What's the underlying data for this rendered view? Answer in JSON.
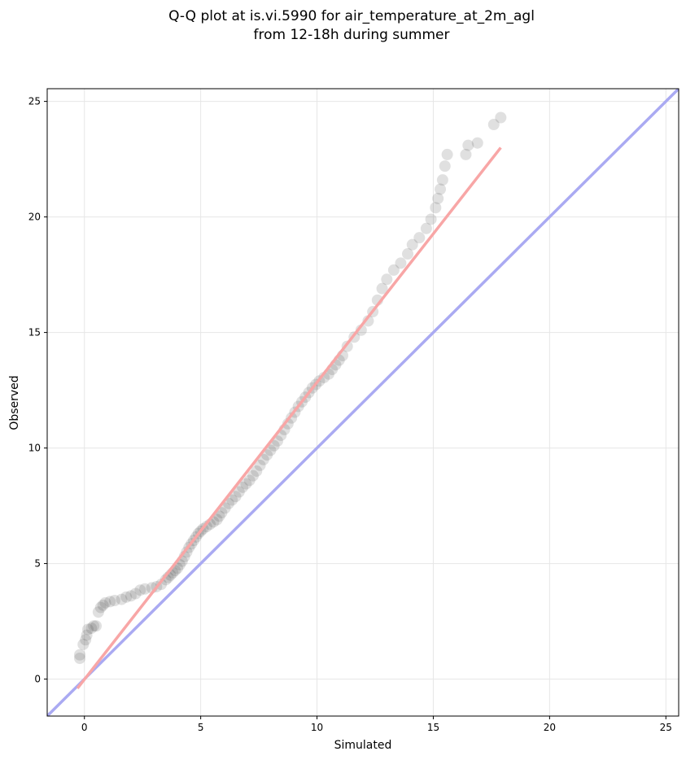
{
  "chart_data": {
    "type": "scatter",
    "title": [
      "Q-Q plot at is.vi.5990 for air_temperature_at_2m_agl",
      "from 12-18h during summer"
    ],
    "x_label": "Simulated",
    "y_label": "Observed",
    "xlim": [
      -1.6,
      25.55
    ],
    "ylim": [
      -1.6,
      25.55
    ],
    "xticks": [
      0,
      5,
      10,
      15,
      20,
      25
    ],
    "yticks": [
      0,
      5,
      10,
      15,
      20,
      25
    ],
    "grid": true,
    "points": {
      "color": "#404040",
      "x": [
        -0.2,
        -0.2,
        -0.05,
        0.05,
        0.1,
        0.15,
        0.3,
        0.4,
        0.5,
        0.6,
        0.7,
        0.8,
        0.9,
        1.1,
        1.3,
        1.6,
        1.8,
        2.0,
        2.2,
        2.4,
        2.6,
        2.9,
        3.1,
        3.3,
        3.5,
        3.6,
        3.7,
        3.8,
        3.9,
        4.0,
        4.1,
        4.2,
        4.3,
        4.4,
        4.5,
        4.6,
        4.7,
        4.8,
        4.9,
        5.0,
        5.1,
        5.25,
        5.4,
        5.55,
        5.7,
        5.8,
        5.9,
        6.05,
        6.2,
        6.35,
        6.5,
        6.65,
        6.8,
        6.95,
        7.1,
        7.25,
        7.4,
        7.55,
        7.7,
        7.85,
        8.0,
        8.15,
        8.3,
        8.45,
        8.6,
        8.75,
        8.9,
        9.05,
        9.2,
        9.35,
        9.5,
        9.65,
        9.8,
        9.95,
        10.1,
        10.3,
        10.5,
        10.65,
        10.8,
        10.95,
        11.1,
        11.3,
        11.6,
        11.9,
        12.2,
        12.4,
        12.6,
        12.8,
        13.0,
        13.3,
        13.6,
        13.9,
        14.1,
        14.4,
        14.7,
        14.9,
        15.1,
        15.2,
        15.3,
        15.4,
        15.5,
        15.6,
        16.4,
        16.5,
        16.9,
        17.6,
        17.9
      ],
      "y": [
        0.9,
        1.05,
        1.5,
        1.7,
        1.9,
        2.15,
        2.2,
        2.3,
        2.3,
        2.9,
        3.1,
        3.2,
        3.3,
        3.35,
        3.4,
        3.45,
        3.55,
        3.6,
        3.7,
        3.85,
        3.9,
        3.95,
        4.0,
        4.1,
        4.3,
        4.4,
        4.5,
        4.6,
        4.7,
        4.8,
        4.95,
        5.1,
        5.3,
        5.5,
        5.7,
        5.85,
        6.0,
        6.15,
        6.3,
        6.4,
        6.5,
        6.6,
        6.7,
        6.8,
        6.9,
        7.05,
        7.2,
        7.4,
        7.6,
        7.75,
        7.9,
        8.1,
        8.3,
        8.45,
        8.6,
        8.8,
        9.0,
        9.25,
        9.5,
        9.7,
        9.9,
        10.1,
        10.3,
        10.55,
        10.8,
        11.05,
        11.3,
        11.55,
        11.8,
        12.0,
        12.2,
        12.4,
        12.6,
        12.75,
        12.9,
        13.05,
        13.2,
        13.4,
        13.6,
        13.8,
        14.0,
        14.4,
        14.8,
        15.1,
        15.5,
        15.9,
        16.4,
        16.9,
        17.3,
        17.7,
        18.0,
        18.4,
        18.8,
        19.1,
        19.5,
        19.9,
        20.4,
        20.8,
        21.2,
        21.6,
        22.2,
        22.7,
        22.7,
        23.1,
        23.2,
        24.0,
        24.3
      ]
    },
    "fit_line": {
      "color": "#f8a6a6",
      "x": [
        -0.3,
        17.9
      ],
      "y": [
        -0.4,
        23.0
      ]
    },
    "identity_line": {
      "color": "#aaaaf2",
      "x": [
        -1.6,
        25.55
      ],
      "y": [
        -1.6,
        25.55
      ]
    }
  }
}
